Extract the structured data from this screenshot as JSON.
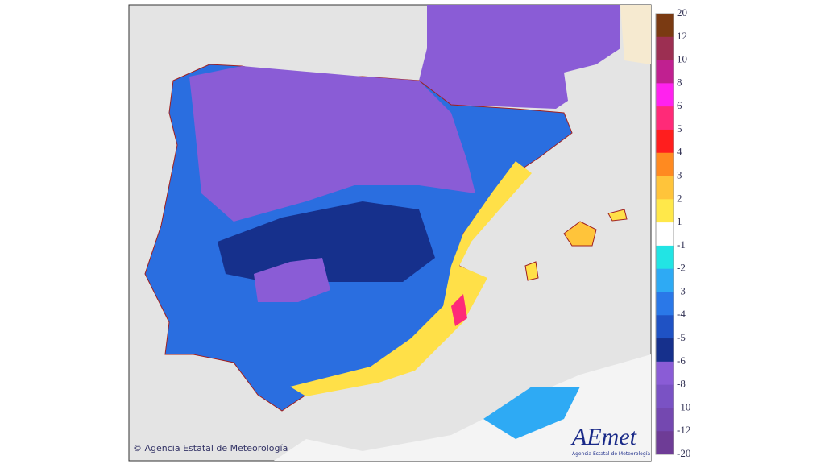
{
  "scale": {
    "labels": [
      "20",
      "12",
      "10",
      "8",
      "6",
      "5",
      "4",
      "3",
      "2",
      "1",
      "-1",
      "-2",
      "-3",
      "-4",
      "-5",
      "-6",
      "-8",
      "-10",
      "-12",
      "-20"
    ],
    "colors": [
      "#7a3a12",
      "#9c2f52",
      "#c02090",
      "#ff22ee",
      "#ff2a78",
      "#ff1e1e",
      "#ff8a20",
      "#ffc43a",
      "#ffe84a",
      "#ffffff",
      "#22e4e4",
      "#2eaaf4",
      "#2a78e8",
      "#1f52c4",
      "#16308c",
      "#8a5cd6",
      "#7a52c4",
      "#7448b0",
      "#6e3c96"
    ]
  },
  "copyright": "© Agencia Estatal de Meteorología",
  "logo": {
    "name": "AEmet",
    "caption": "Agencia Estatal de Meteorología"
  }
}
